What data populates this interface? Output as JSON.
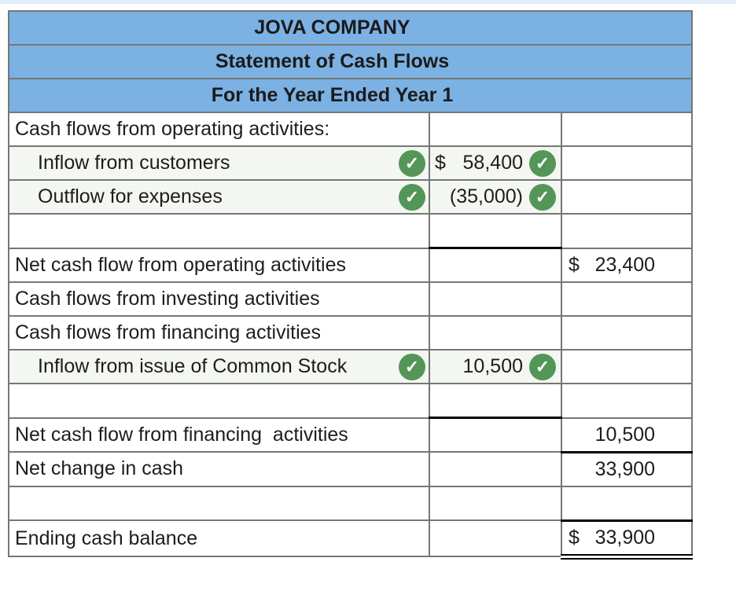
{
  "statement": {
    "company": "JOVA COMPANY",
    "title": "Statement of Cash Flows",
    "period": "For the Year Ended Year 1"
  },
  "icons": {
    "check": "✓"
  },
  "colors": {
    "header_blue": "#7cb1e3",
    "row_tint_green": "#f3f6f1",
    "check_green": "#549558",
    "border_gray": "#757775",
    "rule_black": "#000000",
    "top_strip_blue": "#e4eefa"
  },
  "rows": [
    {
      "label": "Cash flows from operating activities:"
    },
    {
      "label": "Inflow from customers",
      "col2_dollar": "$",
      "col2_amount": "58,400"
    },
    {
      "label": "Outflow for expenses",
      "col2_amount": "(35,000)"
    },
    {
      "label": ""
    },
    {
      "label": "Net cash flow from operating activities",
      "col3_dollar": "$",
      "col3_amount": "23,400"
    },
    {
      "label": "Cash flows from investing activities"
    },
    {
      "label": "Cash flows from financing activities"
    },
    {
      "label": "Inflow from issue of Common Stock",
      "col2_amount": "10,500"
    },
    {
      "label": ""
    },
    {
      "label": "Net cash flow from financing  activities",
      "col3_amount": "10,500"
    },
    {
      "label": "Net change in cash",
      "col3_amount": "33,900"
    },
    {
      "label": ""
    },
    {
      "label": "Ending cash balance",
      "col3_dollar": "$",
      "col3_amount": "33,900"
    }
  ]
}
